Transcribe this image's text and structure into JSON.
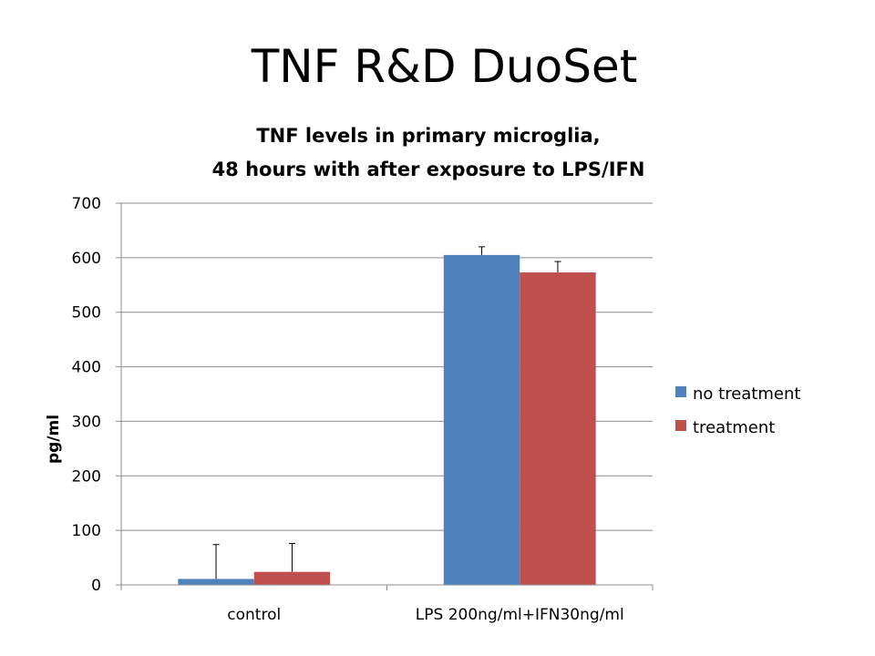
{
  "slide": {
    "title": "TNF R&D DuoSet"
  },
  "chart_data": {
    "type": "bar",
    "title_lines": [
      "TNF levels in primary microglia,",
      "48 hours with after exposure to LPS/IFN"
    ],
    "categories": [
      "control",
      "LPS 200ng/ml+IFN30ng/ml"
    ],
    "series": [
      {
        "name": "no treatment",
        "color": "#4F81BD",
        "values": [
          11,
          605
        ],
        "errors": [
          63,
          15
        ]
      },
      {
        "name": "treatment",
        "color": "#C0504D",
        "values": [
          24,
          573
        ],
        "errors": [
          52,
          20
        ]
      }
    ],
    "ylabel": "pg/ml",
    "ylim": [
      0,
      700
    ],
    "yticks": [
      0,
      100,
      200,
      300,
      400,
      500,
      600,
      700
    ],
    "grid": true,
    "legend": "right"
  }
}
